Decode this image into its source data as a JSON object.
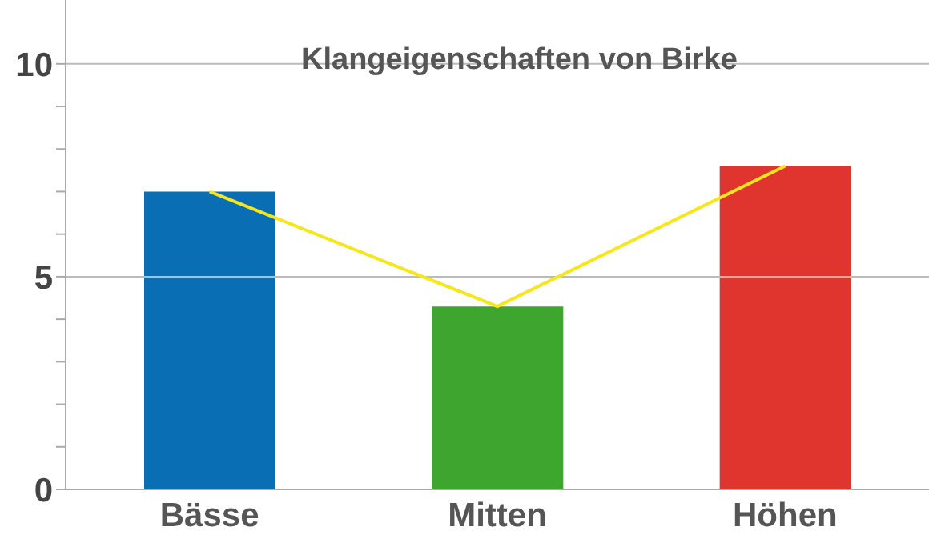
{
  "chart_data": {
    "type": "bar",
    "title": "Klangeigenschaften von Birke",
    "categories": [
      "Bässe",
      "Mitten",
      "Höhen"
    ],
    "series": [
      {
        "colors": [
          "#0a6eb4",
          "#3ea62e",
          "#e0352e"
        ],
        "values": [
          7,
          4.3,
          7.6
        ]
      },
      {
        "type": "line",
        "color": "#f5e61e",
        "values": [
          7,
          4.3,
          7.6
        ]
      }
    ],
    "ylim": [
      0,
      11.5
    ],
    "yticks": [
      0,
      {
        "value": 1,
        "label": null
      },
      {
        "value": 2,
        "label": null
      },
      {
        "value": 3,
        "label": null
      },
      {
        "value": 4,
        "label": null
      },
      5,
      {
        "value": 6,
        "label": null
      },
      {
        "value": 7,
        "label": null
      },
      {
        "value": 8,
        "label": null
      },
      {
        "value": 9,
        "label": null
      },
      10
    ],
    "grid": "y",
    "marker": "none"
  }
}
